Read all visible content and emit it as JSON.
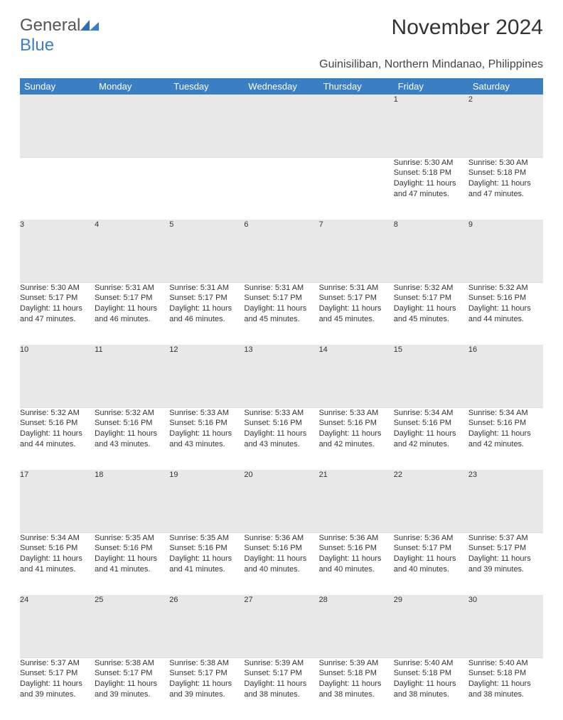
{
  "logo": {
    "part1": "General",
    "part2": "Blue"
  },
  "title": "November 2024",
  "location": "Guinisiliban, Northern Mindanao, Philippines",
  "colors": {
    "header_bg": "#3a7fc4",
    "header_fg": "#ffffff",
    "daynum_bg": "#e8e8e8",
    "text": "#333333",
    "page_bg": "#ffffff"
  },
  "fonts": {
    "title_size": 30,
    "subtitle_size": 16,
    "header_size": 13,
    "cell_size": 11
  },
  "weekdays": [
    "Sunday",
    "Monday",
    "Tuesday",
    "Wednesday",
    "Thursday",
    "Friday",
    "Saturday"
  ],
  "weeks": [
    {
      "nums": [
        "",
        "",
        "",
        "",
        "",
        "1",
        "2"
      ],
      "cells": [
        "",
        "",
        "",
        "",
        "",
        "Sunrise: 5:30 AM\nSunset: 5:18 PM\nDaylight: 11 hours and 47 minutes.",
        "Sunrise: 5:30 AM\nSunset: 5:18 PM\nDaylight: 11 hours and 47 minutes."
      ]
    },
    {
      "nums": [
        "3",
        "4",
        "5",
        "6",
        "7",
        "8",
        "9"
      ],
      "cells": [
        "Sunrise: 5:30 AM\nSunset: 5:17 PM\nDaylight: 11 hours and 47 minutes.",
        "Sunrise: 5:31 AM\nSunset: 5:17 PM\nDaylight: 11 hours and 46 minutes.",
        "Sunrise: 5:31 AM\nSunset: 5:17 PM\nDaylight: 11 hours and 46 minutes.",
        "Sunrise: 5:31 AM\nSunset: 5:17 PM\nDaylight: 11 hours and 45 minutes.",
        "Sunrise: 5:31 AM\nSunset: 5:17 PM\nDaylight: 11 hours and 45 minutes.",
        "Sunrise: 5:32 AM\nSunset: 5:17 PM\nDaylight: 11 hours and 45 minutes.",
        "Sunrise: 5:32 AM\nSunset: 5:16 PM\nDaylight: 11 hours and 44 minutes."
      ]
    },
    {
      "nums": [
        "10",
        "11",
        "12",
        "13",
        "14",
        "15",
        "16"
      ],
      "cells": [
        "Sunrise: 5:32 AM\nSunset: 5:16 PM\nDaylight: 11 hours and 44 minutes.",
        "Sunrise: 5:32 AM\nSunset: 5:16 PM\nDaylight: 11 hours and 43 minutes.",
        "Sunrise: 5:33 AM\nSunset: 5:16 PM\nDaylight: 11 hours and 43 minutes.",
        "Sunrise: 5:33 AM\nSunset: 5:16 PM\nDaylight: 11 hours and 43 minutes.",
        "Sunrise: 5:33 AM\nSunset: 5:16 PM\nDaylight: 11 hours and 42 minutes.",
        "Sunrise: 5:34 AM\nSunset: 5:16 PM\nDaylight: 11 hours and 42 minutes.",
        "Sunrise: 5:34 AM\nSunset: 5:16 PM\nDaylight: 11 hours and 42 minutes."
      ]
    },
    {
      "nums": [
        "17",
        "18",
        "19",
        "20",
        "21",
        "22",
        "23"
      ],
      "cells": [
        "Sunrise: 5:34 AM\nSunset: 5:16 PM\nDaylight: 11 hours and 41 minutes.",
        "Sunrise: 5:35 AM\nSunset: 5:16 PM\nDaylight: 11 hours and 41 minutes.",
        "Sunrise: 5:35 AM\nSunset: 5:16 PM\nDaylight: 11 hours and 41 minutes.",
        "Sunrise: 5:36 AM\nSunset: 5:16 PM\nDaylight: 11 hours and 40 minutes.",
        "Sunrise: 5:36 AM\nSunset: 5:16 PM\nDaylight: 11 hours and 40 minutes.",
        "Sunrise: 5:36 AM\nSunset: 5:17 PM\nDaylight: 11 hours and 40 minutes.",
        "Sunrise: 5:37 AM\nSunset: 5:17 PM\nDaylight: 11 hours and 39 minutes."
      ]
    },
    {
      "nums": [
        "24",
        "25",
        "26",
        "27",
        "28",
        "29",
        "30"
      ],
      "cells": [
        "Sunrise: 5:37 AM\nSunset: 5:17 PM\nDaylight: 11 hours and 39 minutes.",
        "Sunrise: 5:38 AM\nSunset: 5:17 PM\nDaylight: 11 hours and 39 minutes.",
        "Sunrise: 5:38 AM\nSunset: 5:17 PM\nDaylight: 11 hours and 39 minutes.",
        "Sunrise: 5:39 AM\nSunset: 5:17 PM\nDaylight: 11 hours and 38 minutes.",
        "Sunrise: 5:39 AM\nSunset: 5:18 PM\nDaylight: 11 hours and 38 minutes.",
        "Sunrise: 5:40 AM\nSunset: 5:18 PM\nDaylight: 11 hours and 38 minutes.",
        "Sunrise: 5:40 AM\nSunset: 5:18 PM\nDaylight: 11 hours and 38 minutes."
      ]
    }
  ]
}
